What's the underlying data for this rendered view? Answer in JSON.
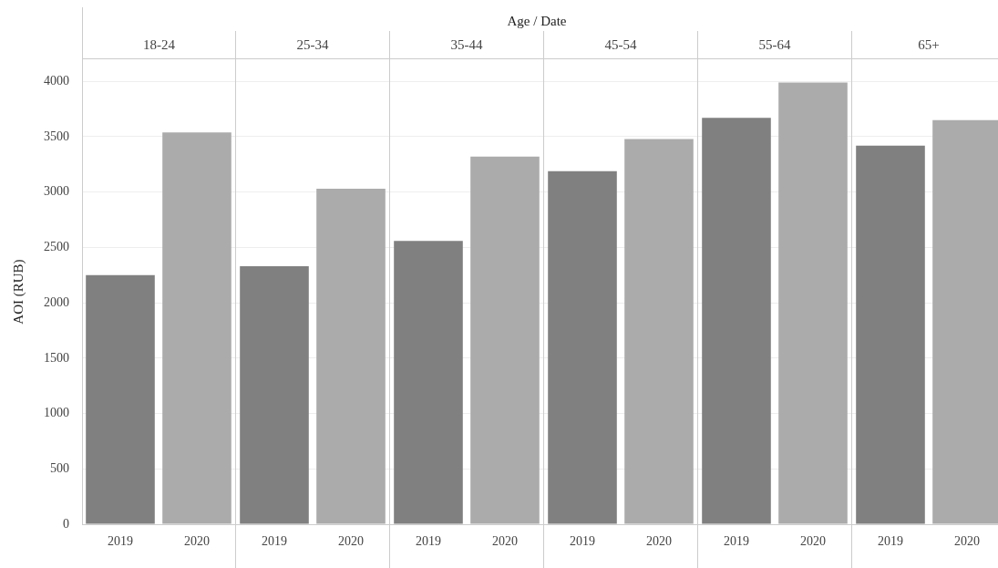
{
  "chart_data": [
    {
      "type": "bar",
      "title": "18-24",
      "annotations": [
        "Age / Date"
      ],
      "ylabel": "AOI (RUB)",
      "categories": [
        "2019",
        "2020"
      ],
      "values": [
        2250,
        3540
      ],
      "colors": [
        "#808080",
        "#ababab"
      ],
      "ylim": [
        0,
        4200
      ],
      "yticks": [
        0,
        500,
        1000,
        1500,
        2000,
        2500,
        3000,
        3500,
        4000
      ],
      "grid": "y"
    },
    {
      "type": "bar",
      "title": "25-34",
      "categories": [
        "2019",
        "2020"
      ],
      "values": [
        2330,
        3030
      ],
      "colors": [
        "#808080",
        "#ababab"
      ],
      "ylim": [
        0,
        4200
      ],
      "yticks": [
        0,
        500,
        1000,
        1500,
        2000,
        2500,
        3000,
        3500,
        4000
      ],
      "grid": "y",
      "tick_labels": "x"
    },
    {
      "type": "bar",
      "title": "35-44",
      "categories": [
        "2019",
        "2020"
      ],
      "values": [
        2560,
        3320
      ],
      "colors": [
        "#808080",
        "#ababab"
      ],
      "ylim": [
        0,
        4200
      ],
      "yticks": [
        0,
        500,
        1000,
        1500,
        2000,
        2500,
        3000,
        3500,
        4000
      ],
      "grid": "y",
      "tick_labels": "x"
    },
    {
      "type": "bar",
      "title": "45-54",
      "categories": [
        "2019",
        "2020"
      ],
      "values": [
        3190,
        3480
      ],
      "colors": [
        "#808080",
        "#ababab"
      ],
      "ylim": [
        0,
        4200
      ],
      "yticks": [
        0,
        500,
        1000,
        1500,
        2000,
        2500,
        3000,
        3500,
        4000
      ],
      "grid": "y",
      "tick_labels": "x"
    },
    {
      "type": "bar",
      "title": "55-64",
      "categories": [
        "2019",
        "2020"
      ],
      "values": [
        3670,
        3990
      ],
      "colors": [
        "#808080",
        "#ababab"
      ],
      "ylim": [
        0,
        4200
      ],
      "yticks": [
        0,
        500,
        1000,
        1500,
        2000,
        2500,
        3000,
        3500,
        4000
      ],
      "grid": "y",
      "tick_labels": "x"
    },
    {
      "type": "bar",
      "title": "65+",
      "categories": [
        "2019",
        "2020"
      ],
      "values": [
        3420,
        3650
      ],
      "colors": [
        "#808080",
        "#ababab"
      ],
      "ylim": [
        0,
        4200
      ],
      "yticks": [
        0,
        500,
        1000,
        1500,
        2000,
        2500,
        3000,
        3500,
        4000
      ],
      "grid": "y",
      "tick_labels": "x"
    }
  ]
}
